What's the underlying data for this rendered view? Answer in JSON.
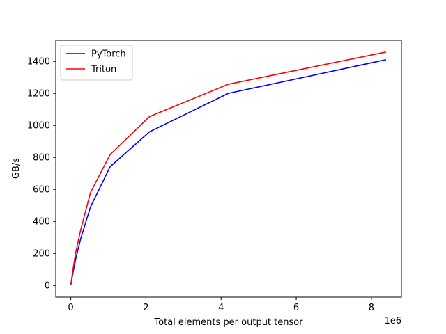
{
  "chart_data": {
    "type": "line",
    "xlabel": "Total elements per output tensor",
    "ylabel": "GB/s",
    "x_offset_label": "1e6",
    "xlim": [
      -400000,
      8800000
    ],
    "ylim": [
      -73,
      1531
    ],
    "x_ticks": [
      0,
      2000000,
      4000000,
      6000000,
      8000000
    ],
    "x_tick_labels": [
      "0",
      "2",
      "4",
      "6",
      "8"
    ],
    "y_ticks": [
      0,
      200,
      400,
      600,
      800,
      1000,
      1200,
      1400
    ],
    "y_tick_labels": [
      "0",
      "200",
      "400",
      "600",
      "800",
      "1000",
      "1200",
      "1400"
    ],
    "grid": false,
    "legend_position": "upper-left",
    "x": [
      4096,
      8192,
      16384,
      32768,
      65536,
      131072,
      262144,
      524288,
      1048576,
      2097152,
      4194304,
      8388608
    ],
    "series": [
      {
        "name": "PyTorch",
        "color": "#0000ff",
        "values": [
          6,
          12,
          24,
          46,
          88,
          165,
          290,
          490,
          742,
          960,
          1200,
          1410
        ]
      },
      {
        "name": "Triton",
        "color": "#ff0000",
        "values": [
          8,
          16,
          30,
          58,
          110,
          205,
          345,
          580,
          818,
          1055,
          1257,
          1458
        ]
      }
    ]
  }
}
